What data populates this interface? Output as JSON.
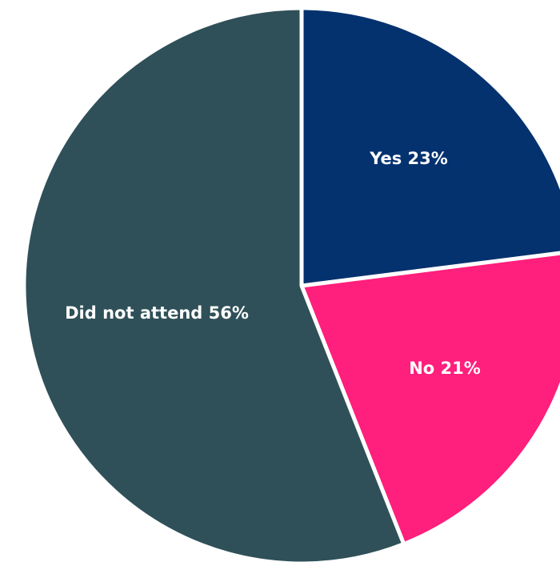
{
  "chart_data": {
    "type": "pie",
    "slices": [
      {
        "label": "Yes",
        "value": 23,
        "display": "Yes 23%",
        "color": "#04326f"
      },
      {
        "label": "No",
        "value": 21,
        "display": "No 21%",
        "color": "#ff1f7c"
      },
      {
        "label": "Did not attend",
        "value": 56,
        "display": "Did not attend 56%",
        "color": "#2f5058"
      }
    ],
    "start_angle_deg": 0,
    "direction": "clockwise",
    "legend": "none",
    "unit": "%"
  }
}
